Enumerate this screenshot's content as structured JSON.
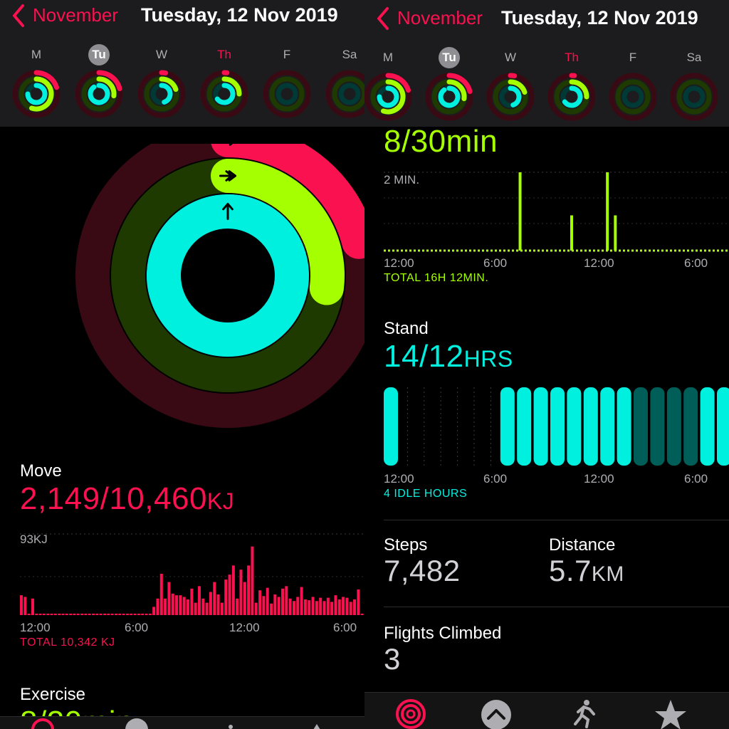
{
  "colors": {
    "move": "#fa114f",
    "exercise": "#a6ff00",
    "stand": "#00f0e0",
    "background": "#000000",
    "header": "#1c1c1e"
  },
  "nav": {
    "back_label": "November",
    "title": "Tuesday, 12 Nov 2019"
  },
  "week": {
    "days": [
      {
        "letter": "M",
        "move": 0.2,
        "exercise": 0.55,
        "stand": 0.75
      },
      {
        "letter": "Tu",
        "move": 0.21,
        "exercise": 0.27,
        "stand": 0.9,
        "today": true
      },
      {
        "letter": "W",
        "move": 0.03,
        "exercise": 0.2,
        "stand": 0.45
      },
      {
        "letter": "Th",
        "move": 0.02,
        "exercise": 0.25,
        "stand": 0.65,
        "selected": true
      },
      {
        "letter": "F",
        "move": 0,
        "exercise": 0,
        "stand": 0
      },
      {
        "letter": "Sa",
        "move": 0,
        "exercise": 0,
        "stand": 0
      }
    ]
  },
  "rings": {
    "move": 0.21,
    "exercise": 0.27,
    "stand": 1.17
  },
  "move": {
    "label": "Move",
    "value": "2,149/10,460",
    "unit": "KJ",
    "max_label": "93KJ",
    "time_labels": [
      "12:00",
      "6:00",
      "12:00",
      "6:00"
    ],
    "total": "TOTAL 10,342 KJ"
  },
  "exercise": {
    "label": "Exercise",
    "value": "8/30min",
    "max_label": "2 MIN.",
    "time_labels": [
      "12:00",
      "6:00",
      "12:00",
      "6:00"
    ],
    "total": "TOTAL 16H 12MIN."
  },
  "stand": {
    "label": "Stand",
    "value": "14/12",
    "unit": "HRS",
    "time_labels": [
      "12:00",
      "6:00",
      "12:00",
      "6:00"
    ],
    "idle": "4 IDLE HOURS"
  },
  "steps": {
    "label": "Steps",
    "value": "7,482"
  },
  "distance": {
    "label": "Distance",
    "value": "5.7",
    "unit": "KM"
  },
  "flights": {
    "label": "Flights Climbed",
    "value": "3"
  },
  "chart_data": [
    {
      "type": "bar",
      "name": "move",
      "ymax_label": "93KJ",
      "values": [
        24,
        22,
        0,
        20,
        0,
        0,
        0,
        0,
        0,
        0,
        0,
        0,
        0,
        0,
        0,
        0,
        0,
        0,
        0,
        0,
        0,
        0,
        0,
        0,
        0,
        0,
        0,
        0,
        0,
        0,
        0,
        0,
        0,
        0,
        0,
        10,
        20,
        50,
        20,
        40,
        26,
        24,
        24,
        22,
        19,
        32,
        15,
        35,
        20,
        15,
        28,
        40,
        25,
        15,
        43,
        49,
        60,
        20,
        55,
        40,
        60,
        83,
        15,
        30,
        23,
        33,
        14,
        25,
        22,
        32,
        35,
        20,
        17,
        22,
        34,
        19,
        18,
        22,
        17,
        21,
        17,
        21,
        16,
        24,
        19,
        22,
        21,
        16,
        19,
        31,
        0
      ]
    },
    {
      "type": "bar",
      "name": "exercise",
      "ymax_label": "2 MIN.",
      "values": [
        0,
        0,
        0,
        0,
        0,
        0,
        0,
        0,
        0,
        0,
        0,
        0,
        0,
        0,
        0,
        0,
        0,
        0,
        0,
        0,
        0,
        0,
        0,
        0,
        0,
        0,
        0,
        0,
        0,
        0,
        0,
        0,
        0,
        0,
        2.0,
        0,
        0,
        0,
        0,
        0,
        0,
        0,
        0,
        0,
        0,
        0,
        0,
        0.9,
        0,
        0,
        0,
        0,
        0,
        0,
        0,
        0,
        2.0,
        0,
        0.9,
        0,
        0,
        0,
        0,
        0,
        0,
        0,
        0,
        0,
        0,
        0,
        0,
        0,
        0,
        0,
        0,
        0,
        0,
        0,
        0,
        0,
        0,
        0,
        0,
        0,
        0,
        0,
        0
      ]
    },
    {
      "type": "bar",
      "name": "stand",
      "values": [
        1,
        0,
        0,
        0,
        0,
        0,
        0,
        1,
        1,
        1,
        1,
        1,
        1,
        1,
        1,
        0.5,
        0.5,
        0.5,
        0.5,
        1,
        1,
        1
      ]
    }
  ]
}
